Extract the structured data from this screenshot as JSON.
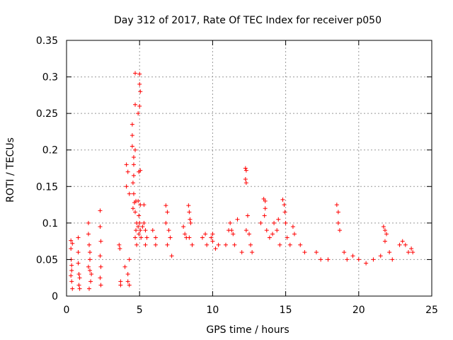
{
  "chart_data": {
    "type": "scatter",
    "title": "Day 312 of 2017, Rate Of TEC Index for receiver p050",
    "xlabel": "GPS time / hours",
    "ylabel": "ROTI / TECUs",
    "xlim": [
      0,
      25
    ],
    "ylim": [
      0,
      0.35
    ],
    "xticks": [
      0,
      5,
      10,
      15,
      20,
      25
    ],
    "yticks": [
      0,
      0.05,
      0.1,
      0.15,
      0.2,
      0.25,
      0.3,
      0.35
    ],
    "xtick_labels": [
      "0",
      "5",
      "10",
      "15",
      "20",
      "25"
    ],
    "ytick_labels": [
      "0",
      "0.05",
      "0.1",
      "0.15",
      "0.2",
      "0.25",
      "0.3",
      "0.35"
    ],
    "grid": true,
    "marker": "+",
    "color": "#ff0000",
    "series": [
      {
        "name": "ROTI",
        "points": [
          [
            0.3,
            0.076
          ],
          [
            0.3,
            0.065
          ],
          [
            0.32,
            0.05
          ],
          [
            0.35,
            0.035
          ],
          [
            0.35,
            0.02
          ],
          [
            0.4,
            0.01
          ],
          [
            0.3,
            0.028
          ],
          [
            0.4,
            0.072
          ],
          [
            0.35,
            0.042
          ],
          [
            0.8,
            0.08
          ],
          [
            0.8,
            0.06
          ],
          [
            0.85,
            0.03
          ],
          [
            0.85,
            0.015
          ],
          [
            0.9,
            0.01
          ],
          [
            0.8,
            0.045
          ],
          [
            0.9,
            0.025
          ],
          [
            1.5,
            0.1
          ],
          [
            1.5,
            0.085
          ],
          [
            1.55,
            0.07
          ],
          [
            1.6,
            0.05
          ],
          [
            1.6,
            0.035
          ],
          [
            1.65,
            0.02
          ],
          [
            1.55,
            0.01
          ],
          [
            1.6,
            0.06
          ],
          [
            1.7,
            0.03
          ],
          [
            1.5,
            0.04
          ],
          [
            2.3,
            0.117
          ],
          [
            2.3,
            0.095
          ],
          [
            2.35,
            0.075
          ],
          [
            2.3,
            0.055
          ],
          [
            2.35,
            0.04
          ],
          [
            2.3,
            0.025
          ],
          [
            2.35,
            0.015
          ],
          [
            3.6,
            0.07
          ],
          [
            3.65,
            0.065
          ],
          [
            3.7,
            0.02
          ],
          [
            3.7,
            0.015
          ],
          [
            4.1,
            0.18
          ],
          [
            4.2,
            0.17
          ],
          [
            4.1,
            0.15
          ],
          [
            4.3,
            0.14
          ],
          [
            4.0,
            0.04
          ],
          [
            4.2,
            0.03
          ],
          [
            4.3,
            0.05
          ],
          [
            4.2,
            0.02
          ],
          [
            4.3,
            0.015
          ],
          [
            4.5,
            0.235
          ],
          [
            4.5,
            0.22
          ],
          [
            4.5,
            0.205
          ],
          [
            4.6,
            0.19
          ],
          [
            4.6,
            0.18
          ],
          [
            4.6,
            0.165
          ],
          [
            4.55,
            0.155
          ],
          [
            4.6,
            0.14
          ],
          [
            4.65,
            0.128
          ],
          [
            4.55,
            0.12
          ],
          [
            4.7,
            0.305
          ],
          [
            4.7,
            0.262
          ],
          [
            4.7,
            0.2
          ],
          [
            4.75,
            0.13
          ],
          [
            4.7,
            0.115
          ],
          [
            4.8,
            0.1
          ],
          [
            4.75,
            0.09
          ],
          [
            4.7,
            0.08
          ],
          [
            4.8,
            0.07
          ],
          [
            4.9,
            0.25
          ],
          [
            4.95,
            0.17
          ],
          [
            4.9,
            0.13
          ],
          [
            4.95,
            0.11
          ],
          [
            4.9,
            0.095
          ],
          [
            4.95,
            0.085
          ],
          [
            5.0,
            0.304
          ],
          [
            5.0,
            0.29
          ],
          [
            5.05,
            0.28
          ],
          [
            5.0,
            0.26
          ],
          [
            5.05,
            0.172
          ],
          [
            5.05,
            0.125
          ],
          [
            5.0,
            0.1
          ],
          [
            5.05,
            0.09
          ],
          [
            5.1,
            0.08
          ],
          [
            5.3,
            0.125
          ],
          [
            5.3,
            0.1
          ],
          [
            5.2,
            0.095
          ],
          [
            5.4,
            0.09
          ],
          [
            5.5,
            0.08
          ],
          [
            5.4,
            0.07
          ],
          [
            5.9,
            0.09
          ],
          [
            6.1,
            0.08
          ],
          [
            6.1,
            0.07
          ],
          [
            6.8,
            0.124
          ],
          [
            6.9,
            0.115
          ],
          [
            6.8,
            0.1
          ],
          [
            7.0,
            0.09
          ],
          [
            7.1,
            0.08
          ],
          [
            6.9,
            0.07
          ],
          [
            7.2,
            0.055
          ],
          [
            8.0,
            0.095
          ],
          [
            8.1,
            0.085
          ],
          [
            8.2,
            0.08
          ],
          [
            8.35,
            0.124
          ],
          [
            8.4,
            0.115
          ],
          [
            8.45,
            0.105
          ],
          [
            8.5,
            0.1
          ],
          [
            8.4,
            0.08
          ],
          [
            8.6,
            0.07
          ],
          [
            9.3,
            0.08
          ],
          [
            9.5,
            0.085
          ],
          [
            9.6,
            0.07
          ],
          [
            9.9,
            0.08
          ],
          [
            10.0,
            0.075
          ],
          [
            10.2,
            0.065
          ],
          [
            10.4,
            0.07
          ],
          [
            10.0,
            0.085
          ],
          [
            10.9,
            0.07
          ],
          [
            11.1,
            0.09
          ],
          [
            11.2,
            0.1
          ],
          [
            11.3,
            0.09
          ],
          [
            11.4,
            0.085
          ],
          [
            11.5,
            0.07
          ],
          [
            11.7,
            0.105
          ],
          [
            12.0,
            0.06
          ],
          [
            12.25,
            0.175
          ],
          [
            12.3,
            0.172
          ],
          [
            12.25,
            0.16
          ],
          [
            12.3,
            0.155
          ],
          [
            12.4,
            0.11
          ],
          [
            12.5,
            0.085
          ],
          [
            12.3,
            0.09
          ],
          [
            12.6,
            0.07
          ],
          [
            12.7,
            0.06
          ],
          [
            13.3,
            0.1
          ],
          [
            13.5,
            0.133
          ],
          [
            13.6,
            0.13
          ],
          [
            13.6,
            0.12
          ],
          [
            13.55,
            0.11
          ],
          [
            13.7,
            0.09
          ],
          [
            13.9,
            0.08
          ],
          [
            14.1,
            0.085
          ],
          [
            14.2,
            0.1
          ],
          [
            14.4,
            0.09
          ],
          [
            14.5,
            0.105
          ],
          [
            14.6,
            0.07
          ],
          [
            14.8,
            0.132
          ],
          [
            14.9,
            0.125
          ],
          [
            14.95,
            0.115
          ],
          [
            15.0,
            0.1
          ],
          [
            15.1,
            0.08
          ],
          [
            15.3,
            0.07
          ],
          [
            15.5,
            0.095
          ],
          [
            15.6,
            0.085
          ],
          [
            16.0,
            0.07
          ],
          [
            16.3,
            0.06
          ],
          [
            17.1,
            0.06
          ],
          [
            17.4,
            0.05
          ],
          [
            17.9,
            0.05
          ],
          [
            18.5,
            0.125
          ],
          [
            18.6,
            0.115
          ],
          [
            18.6,
            0.1
          ],
          [
            18.7,
            0.09
          ],
          [
            19.0,
            0.06
          ],
          [
            19.2,
            0.05
          ],
          [
            19.6,
            0.055
          ],
          [
            20.0,
            0.05
          ],
          [
            20.5,
            0.045
          ],
          [
            21.0,
            0.05
          ],
          [
            21.5,
            0.055
          ],
          [
            21.7,
            0.095
          ],
          [
            21.8,
            0.09
          ],
          [
            21.9,
            0.085
          ],
          [
            21.8,
            0.075
          ],
          [
            22.1,
            0.06
          ],
          [
            22.3,
            0.05
          ],
          [
            22.8,
            0.07
          ],
          [
            23.0,
            0.075
          ],
          [
            23.2,
            0.07
          ],
          [
            23.4,
            0.06
          ],
          [
            23.6,
            0.065
          ],
          [
            23.7,
            0.06
          ]
        ]
      }
    ]
  }
}
